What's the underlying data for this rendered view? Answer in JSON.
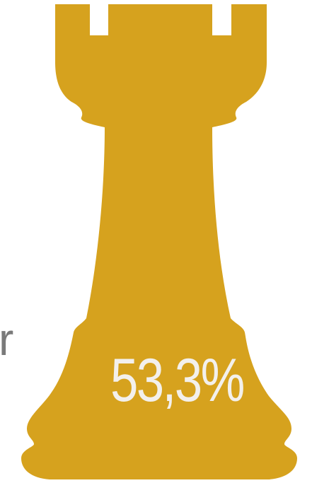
{
  "side_text": "r",
  "rook": {
    "label": "53,3%",
    "fill_color": "#D6A21E",
    "label_color": "#F3F0EC"
  },
  "colors": {
    "side_text": "#7a7a7a",
    "background": "#ffffff"
  }
}
